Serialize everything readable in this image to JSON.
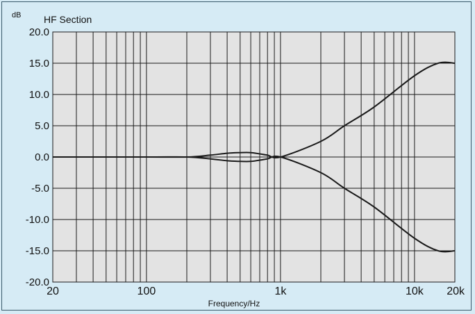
{
  "chart_data": {
    "type": "line",
    "unit_label": "dB",
    "title": "HF Section",
    "xlabel": "Frequency/Hz",
    "ylabel": "",
    "xscale": "log",
    "xlim": [
      20,
      20000
    ],
    "ylim": [
      -20,
      20
    ],
    "x_ticks": [
      {
        "value": 20,
        "label": "20"
      },
      {
        "value": 100,
        "label": "100"
      },
      {
        "value": 1000,
        "label": "1k"
      },
      {
        "value": 10000,
        "label": "10k"
      },
      {
        "value": 20000,
        "label": "20k"
      }
    ],
    "y_ticks": [
      {
        "value": 20,
        "label": "20.0"
      },
      {
        "value": 15,
        "label": "15.0"
      },
      {
        "value": 10,
        "label": "10.0"
      },
      {
        "value": 5,
        "label": "5.0"
      },
      {
        "value": 0,
        "label": "0.0"
      },
      {
        "value": -5,
        "label": "-5.0"
      },
      {
        "value": -10,
        "label": "-10.0"
      },
      {
        "value": -15,
        "label": "-15.0"
      },
      {
        "value": -20,
        "label": "-20.0"
      }
    ],
    "grid": true,
    "series": [
      {
        "x": [
          20,
          100,
          200,
          300,
          400,
          500,
          600,
          700,
          800,
          1000,
          2000,
          3000,
          5000,
          10000,
          15000,
          20000
        ],
        "y": [
          0,
          0,
          0,
          0.3,
          0.6,
          0.7,
          0.7,
          0.5,
          0.3,
          0,
          2.5,
          5,
          8,
          13,
          15,
          15
        ]
      },
      {
        "x": [
          20,
          100,
          200,
          300,
          400,
          500,
          600,
          700,
          800,
          1000,
          2000,
          3000,
          5000,
          10000,
          15000,
          20000
        ],
        "y": [
          0,
          0,
          0,
          -0.3,
          -0.6,
          -0.7,
          -0.7,
          -0.5,
          -0.3,
          0,
          -2.5,
          -5,
          -8,
          -13,
          -15,
          -15
        ]
      }
    ]
  },
  "colors": {
    "background": "#d6ebf5",
    "plot_area": "#e3e3e3",
    "grid": "#1a1a1a",
    "curve": "#1a1a1a"
  }
}
